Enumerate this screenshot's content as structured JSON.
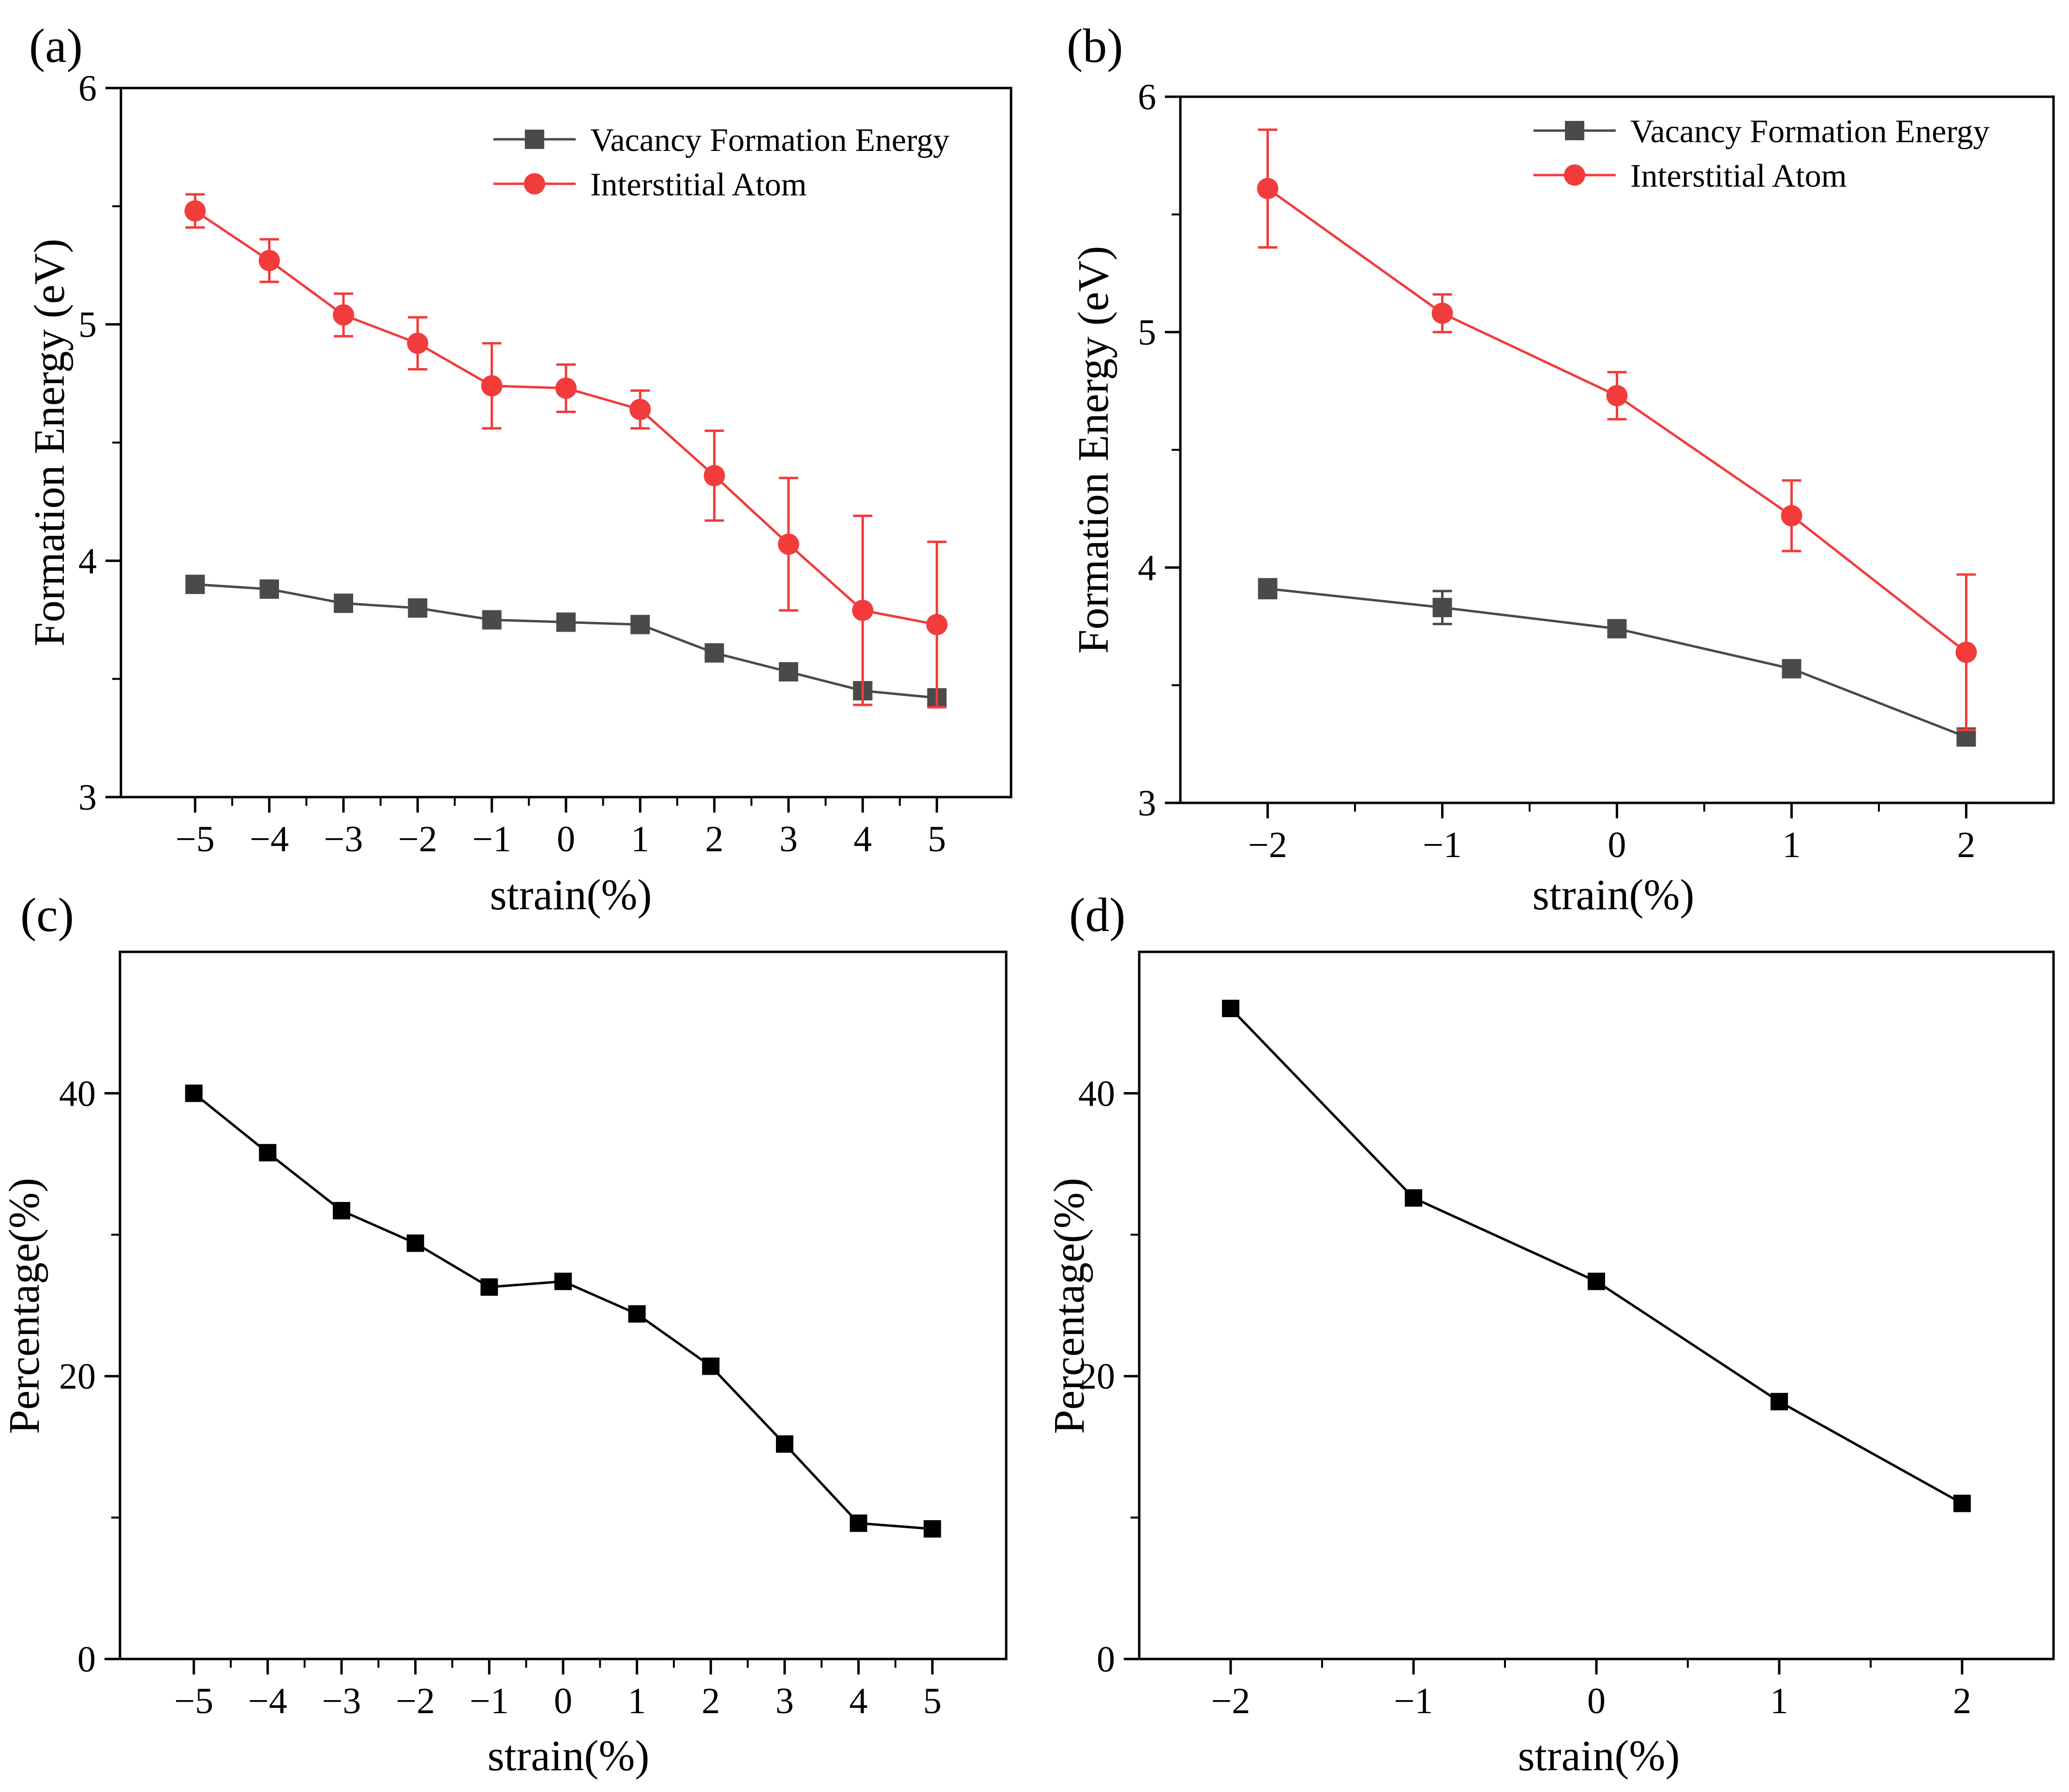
{
  "colors": {
    "vacancy": "#4a4a4a",
    "interstitial": "#f23b3b",
    "line": "#000000"
  },
  "chart_data": [
    {
      "type": "line",
      "panel_label": "(a)",
      "xlabel": "strain(%)",
      "ylabel": "Formation Energy (eV)",
      "x": [
        -5,
        -4,
        -3,
        -2,
        -1,
        0,
        1,
        2,
        3,
        4,
        5
      ],
      "x_tick_labels": [
        "−5",
        "−4",
        "−3",
        "−2",
        "−1",
        "0",
        "1",
        "2",
        "3",
        "4",
        "5"
      ],
      "xlim": [
        -6,
        6
      ],
      "ylim": [
        3,
        6
      ],
      "y_ticks": [
        3,
        4,
        5,
        6
      ],
      "y_tick_labels": [
        "3",
        "4",
        "5",
        "6"
      ],
      "legend_position": "top-right",
      "series": [
        {
          "name": "Vacancy Formation Energy",
          "marker": "square",
          "color": "#4a4a4a",
          "values": [
            3.9,
            3.88,
            3.82,
            3.8,
            3.75,
            3.74,
            3.73,
            3.61,
            3.53,
            3.45,
            3.42
          ],
          "errors": [
            0.02,
            0.02,
            0.02,
            0.02,
            0.02,
            0.02,
            0.02,
            0.02,
            0.02,
            0.03,
            0.03
          ]
        },
        {
          "name": "Interstitial Atom",
          "marker": "circle",
          "color": "#f23b3b",
          "values": [
            5.48,
            5.27,
            5.04,
            4.92,
            4.74,
            4.73,
            4.64,
            4.36,
            4.07,
            3.79,
            3.73
          ],
          "errors": [
            0.07,
            0.09,
            0.09,
            0.11,
            0.18,
            0.1,
            0.08,
            0.19,
            0.28,
            0.4,
            0.35
          ]
        }
      ]
    },
    {
      "type": "line",
      "panel_label": "(b)",
      "xlabel": "strain(%)",
      "ylabel": "Formation Energy (eV)",
      "x": [
        -2,
        -1,
        0,
        1,
        2
      ],
      "x_tick_labels": [
        "−2",
        "−1",
        "0",
        "1",
        "2"
      ],
      "xlim": [
        -2.5,
        2.5
      ],
      "ylim": [
        3,
        6
      ],
      "y_ticks": [
        3,
        4,
        5,
        6
      ],
      "y_tick_labels": [
        "3",
        "4",
        "5",
        "6"
      ],
      "legend_position": "top-right",
      "series": [
        {
          "name": "Vacancy Formation Energy",
          "marker": "square",
          "color": "#4a4a4a",
          "values": [
            3.91,
            3.83,
            3.74,
            3.57,
            3.28
          ],
          "errors": [
            0.04,
            0.07,
            0.03,
            0.02,
            0.03
          ]
        },
        {
          "name": "Interstitial Atom",
          "marker": "circle",
          "color": "#f23b3b",
          "values": [
            5.61,
            5.08,
            4.73,
            4.22,
            3.64
          ],
          "errors": [
            0.25,
            0.08,
            0.1,
            0.15,
            0.33
          ]
        }
      ]
    },
    {
      "type": "line",
      "panel_label": "(c)",
      "xlabel": "strain(%)",
      "ylabel": "Percentage(%)",
      "x": [
        -5,
        -4,
        -3,
        -2,
        -1,
        0,
        1,
        2,
        3,
        4,
        5
      ],
      "x_tick_labels": [
        "−5",
        "−4",
        "−3",
        "−2",
        "−1",
        "0",
        "1",
        "2",
        "3",
        "4",
        "5"
      ],
      "xlim": [
        -6,
        6
      ],
      "ylim": [
        0,
        50
      ],
      "y_ticks": [
        0,
        20,
        40
      ],
      "y_tick_labels": [
        "0",
        "20",
        "40"
      ],
      "series": [
        {
          "marker": "square",
          "color": "#000000",
          "values": [
            40.0,
            35.8,
            31.7,
            29.4,
            26.3,
            26.7,
            24.4,
            20.7,
            15.2,
            9.6,
            9.2
          ]
        }
      ]
    },
    {
      "type": "line",
      "panel_label": "(d)",
      "xlabel": "strain(%)",
      "ylabel": "Percentage(%)",
      "x": [
        -2,
        -1,
        0,
        1,
        2
      ],
      "x_tick_labels": [
        "−2",
        "−1",
        "0",
        "1",
        "2"
      ],
      "xlim": [
        -2.5,
        2.5
      ],
      "ylim": [
        0,
        50
      ],
      "y_ticks": [
        0,
        20,
        40
      ],
      "y_tick_labels": [
        "0",
        "20",
        "40"
      ],
      "series": [
        {
          "marker": "square",
          "color": "#000000",
          "values": [
            46.0,
            32.6,
            26.7,
            18.2,
            11.0
          ]
        }
      ]
    }
  ]
}
